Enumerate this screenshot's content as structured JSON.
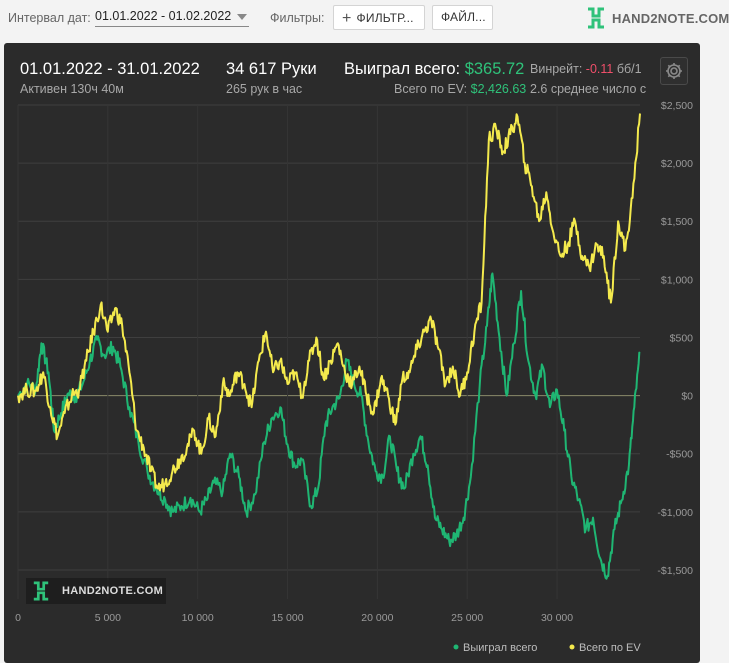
{
  "toolbar": {
    "date_label": "Интервал дат:",
    "date_value": "01.01.2022 - 01.02.2022",
    "filters_label": "Фильтры:",
    "filter_button": "ФИЛЬТР...",
    "files_button": "ФАЙЛ...",
    "brand": "HAND2NOTE.COM"
  },
  "stats": {
    "period": "01.01.2022 - 31.01.2022",
    "active": "Активен 130ч 40м",
    "hands": "34 617 Руки",
    "hands_per_hour": "265 рук в час",
    "won_label": "Выиграл всего:",
    "won_value": "$365.72",
    "ev_label": "Всего по EV:",
    "ev_value": "$2,426.63",
    "winrate_label": "Винрейт:",
    "winrate_value": "-0.11",
    "winrate_unit": "бб/1",
    "avg_text": "2.6 среднее число с"
  },
  "colors": {
    "won": "#1fb673",
    "ev": "#f4ea4d",
    "panel": "#2b2b2b"
  },
  "icons": {
    "settings": "gear-icon",
    "brand": "h2n-logo-icon",
    "add": "plus-icon",
    "dropdown": "caret-down-icon"
  },
  "watermark": "HAND2NOTE.COM",
  "chart_data": {
    "type": "line",
    "xlim": [
      0,
      34617
    ],
    "ylim": [
      -1750,
      2500
    ],
    "x_ticks": [
      0,
      5000,
      10000,
      15000,
      20000,
      25000,
      30000
    ],
    "x_tick_labels": [
      "0",
      "5 000",
      "10 000",
      "15 000",
      "20 000",
      "25 000",
      "30 000"
    ],
    "y_ticks": [
      2500,
      2000,
      1500,
      1000,
      500,
      0,
      -500,
      -1000,
      -1500
    ],
    "y_tick_labels": [
      "$2,500",
      "$2,000",
      "$1,500",
      "$1,000",
      "$500",
      "$0",
      "-$500",
      "-$1,000",
      "-$1,500"
    ],
    "legend_position": "bottom-right",
    "grid": true,
    "series": [
      {
        "name": "Выиграл всего",
        "color": "#1fb673",
        "points": [
          [
            0,
            0
          ],
          [
            500,
            100
          ],
          [
            1000,
            60
          ],
          [
            1300,
            450
          ],
          [
            1700,
            200
          ],
          [
            2000,
            -300
          ],
          [
            2400,
            -150
          ],
          [
            2800,
            20
          ],
          [
            3200,
            -10
          ],
          [
            3600,
            100
          ],
          [
            4000,
            300
          ],
          [
            4400,
            480
          ],
          [
            4800,
            350
          ],
          [
            5300,
            420
          ],
          [
            5700,
            250
          ],
          [
            6200,
            -100
          ],
          [
            6700,
            -400
          ],
          [
            7200,
            -650
          ],
          [
            7700,
            -800
          ],
          [
            8200,
            -900
          ],
          [
            8600,
            -1000
          ],
          [
            9100,
            -950
          ],
          [
            9600,
            -880
          ],
          [
            10100,
            -1000
          ],
          [
            10500,
            -900
          ],
          [
            10900,
            -750
          ],
          [
            11400,
            -820
          ],
          [
            11800,
            -500
          ],
          [
            12300,
            -700
          ],
          [
            12700,
            -1000
          ],
          [
            13200,
            -850
          ],
          [
            13700,
            -400
          ],
          [
            14100,
            -200
          ],
          [
            14600,
            -100
          ],
          [
            15000,
            -420
          ],
          [
            15400,
            -600
          ],
          [
            15800,
            -550
          ],
          [
            16300,
            -950
          ],
          [
            16700,
            -800
          ],
          [
            17100,
            -250
          ],
          [
            17500,
            -100
          ],
          [
            17900,
            -20
          ],
          [
            18300,
            300
          ],
          [
            18700,
            100
          ],
          [
            19100,
            0
          ],
          [
            19500,
            -400
          ],
          [
            19900,
            -650
          ],
          [
            20300,
            -700
          ],
          [
            20700,
            -350
          ],
          [
            21100,
            -650
          ],
          [
            21500,
            -800
          ],
          [
            22000,
            -500
          ],
          [
            22400,
            -350
          ],
          [
            22800,
            -600
          ],
          [
            23200,
            -1050
          ],
          [
            23600,
            -1150
          ],
          [
            24000,
            -1250
          ],
          [
            24400,
            -1200
          ],
          [
            24800,
            -1050
          ],
          [
            25200,
            -700
          ],
          [
            25700,
            100
          ],
          [
            26100,
            600
          ],
          [
            26400,
            1050
          ],
          [
            26800,
            500
          ],
          [
            27200,
            0
          ],
          [
            27600,
            450
          ],
          [
            28000,
            900
          ],
          [
            28400,
            300
          ],
          [
            28800,
            0
          ],
          [
            29200,
            250
          ],
          [
            29600,
            -100
          ],
          [
            30000,
            50
          ],
          [
            30400,
            -300
          ],
          [
            30800,
            -700
          ],
          [
            31200,
            -900
          ],
          [
            31600,
            -1150
          ],
          [
            32000,
            -1050
          ],
          [
            32400,
            -1400
          ],
          [
            32800,
            -1550
          ],
          [
            33200,
            -1150
          ],
          [
            33600,
            -900
          ],
          [
            34000,
            -600
          ],
          [
            34300,
            -100
          ],
          [
            34617,
            366
          ]
        ]
      },
      {
        "name": "Всего по EV",
        "color": "#f4ea4d",
        "points": [
          [
            0,
            0
          ],
          [
            500,
            50
          ],
          [
            1000,
            40
          ],
          [
            1400,
            200
          ],
          [
            1800,
            -100
          ],
          [
            2200,
            -350
          ],
          [
            2600,
            -150
          ],
          [
            3000,
            0
          ],
          [
            3400,
            50
          ],
          [
            3800,
            300
          ],
          [
            4200,
            550
          ],
          [
            4600,
            780
          ],
          [
            5000,
            550
          ],
          [
            5400,
            750
          ],
          [
            5800,
            600
          ],
          [
            6200,
            200
          ],
          [
            6600,
            -300
          ],
          [
            7000,
            -450
          ],
          [
            7400,
            -650
          ],
          [
            7800,
            -800
          ],
          [
            8200,
            -750
          ],
          [
            8600,
            -650
          ],
          [
            9000,
            -550
          ],
          [
            9400,
            -450
          ],
          [
            9800,
            -300
          ],
          [
            10200,
            -500
          ],
          [
            10600,
            -200
          ],
          [
            11000,
            -350
          ],
          [
            11400,
            100
          ],
          [
            11800,
            0
          ],
          [
            12200,
            200
          ],
          [
            12600,
            100
          ],
          [
            13000,
            -100
          ],
          [
            13400,
            300
          ],
          [
            13800,
            550
          ],
          [
            14200,
            200
          ],
          [
            14600,
            300
          ],
          [
            15000,
            100
          ],
          [
            15400,
            200
          ],
          [
            15800,
            0
          ],
          [
            16200,
            300
          ],
          [
            16600,
            500
          ],
          [
            17000,
            150
          ],
          [
            17400,
            300
          ],
          [
            17800,
            450
          ],
          [
            18200,
            200
          ],
          [
            18600,
            100
          ],
          [
            19000,
            250
          ],
          [
            19400,
            0
          ],
          [
            19800,
            -150
          ],
          [
            20200,
            150
          ],
          [
            20600,
            0
          ],
          [
            21000,
            -250
          ],
          [
            21400,
            150
          ],
          [
            21800,
            200
          ],
          [
            22200,
            400
          ],
          [
            22600,
            550
          ],
          [
            23000,
            650
          ],
          [
            23400,
            400
          ],
          [
            23800,
            100
          ],
          [
            24200,
            250
          ],
          [
            24600,
            0
          ],
          [
            25000,
            200
          ],
          [
            25400,
            550
          ],
          [
            25800,
            800
          ],
          [
            26200,
            2200
          ],
          [
            26600,
            2300
          ],
          [
            27000,
            2100
          ],
          [
            27400,
            2250
          ],
          [
            27800,
            2400
          ],
          [
            28200,
            2000
          ],
          [
            28600,
            1800
          ],
          [
            29000,
            1500
          ],
          [
            29400,
            1750
          ],
          [
            29800,
            1400
          ],
          [
            30200,
            1200
          ],
          [
            30600,
            1300
          ],
          [
            31000,
            1500
          ],
          [
            31400,
            1200
          ],
          [
            31800,
            1100
          ],
          [
            32200,
            1300
          ],
          [
            32600,
            1200
          ],
          [
            33000,
            800
          ],
          [
            33400,
            1500
          ],
          [
            33800,
            1250
          ],
          [
            34200,
            1700
          ],
          [
            34617,
            2427
          ]
        ]
      }
    ]
  }
}
